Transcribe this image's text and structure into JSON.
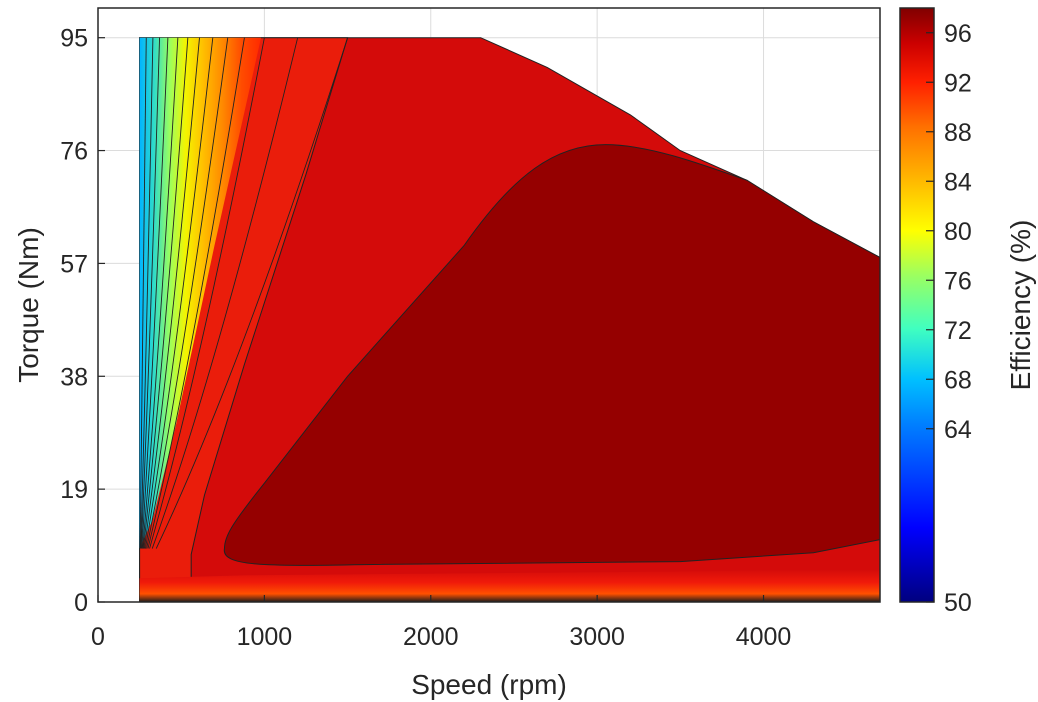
{
  "chart_data": {
    "type": "heatmap",
    "subtype": "filled contour",
    "xlabel": "Speed (rpm)",
    "ylabel": "Torque (Nm)",
    "colorbar_label": "Efficiency (%)",
    "xlim": [
      0,
      4700
    ],
    "ylim": [
      0,
      100
    ],
    "x_ticks": [
      0,
      1000,
      2000,
      3000,
      4000
    ],
    "x_tick_labels": [
      "0",
      "1000",
      "2000",
      "3000",
      "4000"
    ],
    "y_ticks": [
      0,
      19,
      38,
      57,
      76,
      95
    ],
    "y_tick_labels": [
      "0",
      "19",
      "38",
      "57",
      "76",
      "95"
    ],
    "colorbar_range": [
      50,
      98
    ],
    "colorbar_ticks": [
      50,
      64,
      68,
      72,
      76,
      80,
      84,
      88,
      92,
      96
    ],
    "colorbar_tick_labels": [
      "50",
      "64",
      "68",
      "72",
      "76",
      "80",
      "84",
      "88",
      "92",
      "96"
    ],
    "colormap": "jet",
    "grid": true,
    "operating_range": {
      "speed_min": 250,
      "speed_max": 4700,
      "torque_max": 95,
      "torque_envelope": [
        {
          "speed": 250,
          "torque": 95
        },
        {
          "speed": 2300,
          "torque": 95
        },
        {
          "speed": 2700,
          "torque": 90
        },
        {
          "speed": 3200,
          "torque": 82
        },
        {
          "speed": 3500,
          "torque": 76
        },
        {
          "speed": 3900,
          "torque": 71
        },
        {
          "speed": 4300,
          "torque": 64
        },
        {
          "speed": 4700,
          "torque": 58
        }
      ]
    },
    "regions": [
      {
        "efficiency": 96,
        "speed_range": [
          720,
          4700
        ],
        "torque_range": [
          6,
          77
        ]
      },
      {
        "efficiency": 94,
        "speed_range": [
          250,
          4700
        ],
        "torque_range": [
          3,
          95
        ]
      }
    ],
    "colors": {
      "eff_96_plus": "#950000",
      "eff_94": "#d40b0a",
      "eff_92": "#ea1d0b",
      "eff_90": "#ff3a00",
      "eff_88": "#ff7300",
      "eff_84": "#ffb000",
      "eff_80": "#fff000",
      "eff_76": "#b0ff40",
      "eff_72": "#40e0c0",
      "eff_64": "#00b0ff"
    }
  }
}
